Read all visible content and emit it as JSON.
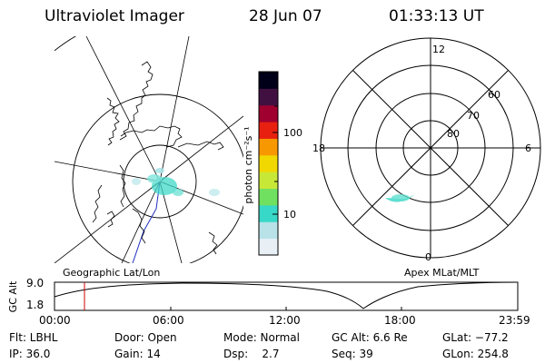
{
  "header": {
    "instrument": "Ultraviolet Imager",
    "date": "28 Jun 07",
    "time": "01:33:13 UT"
  },
  "colorbar": {
    "units_label": "photon cm⁻²s⁻¹",
    "ticks": [
      "100",
      "10"
    ],
    "colors": [
      "#e8f0f6",
      "#b8e2e8",
      "#38d8c8",
      "#70e060",
      "#c8e838",
      "#f0d800",
      "#f89800",
      "#e82010",
      "#a00030",
      "#401040",
      "#000018"
    ]
  },
  "polar_plot": {
    "mlt_labels": {
      "top": "12",
      "left": "18",
      "right": "6",
      "bottom": "0"
    },
    "lat_labels": [
      "60",
      "70",
      "80"
    ]
  },
  "map_labels": {
    "left": "Geographic Lat/Lon",
    "right": "Apex MLat/MLT"
  },
  "timeline": {
    "ylabel": "GC Alt",
    "y_ticks": [
      "9.0",
      "1.8"
    ],
    "x_ticks": [
      "00:00",
      "06:00",
      "12:00",
      "18:00",
      "23:59"
    ],
    "marker_color": "#cc0000"
  },
  "info": {
    "filter": "Flt: LBHL",
    "ip": "IP: 36.0",
    "door": "Door: Open",
    "gain": "Gain: 14",
    "mode": "Mode: Normal",
    "dsp": "Dsp:    2.7",
    "gc_alt": "GC Alt: 6.6 Re",
    "seq": "Seq: 39",
    "glat": "GLat: −77.2",
    "glon": "GLon: 254.8"
  }
}
